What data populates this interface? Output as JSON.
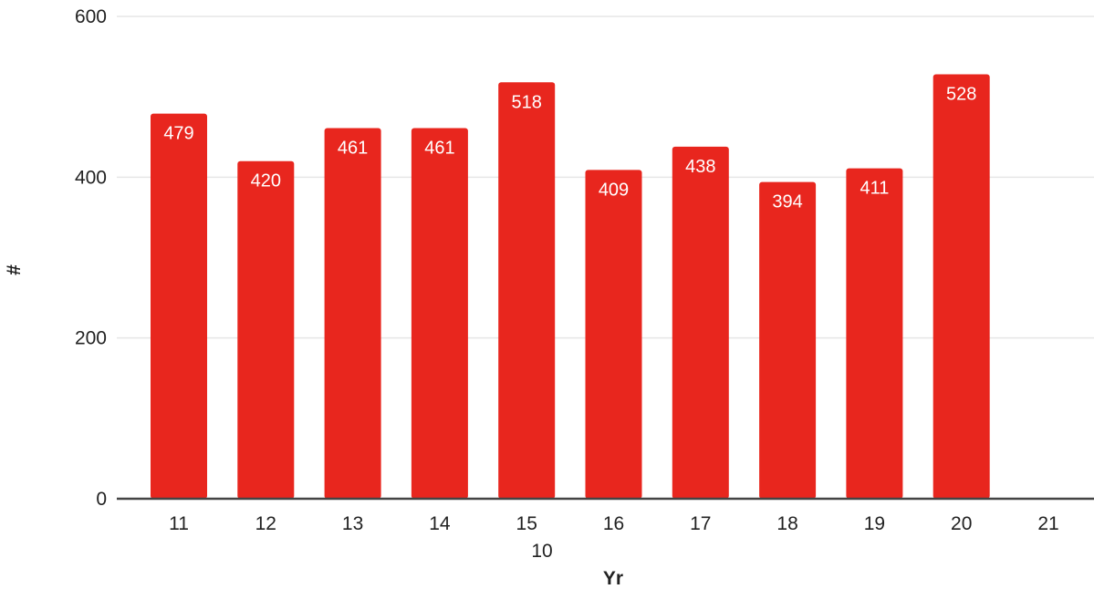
{
  "chart_data": {
    "type": "bar",
    "categories": [
      "11",
      "12",
      "13",
      "14",
      "15",
      "16",
      "17",
      "18",
      "19",
      "20",
      "21"
    ],
    "values": [
      479,
      420,
      461,
      461,
      518,
      409,
      438,
      394,
      411,
      528,
      null
    ],
    "data_labels": [
      "479",
      "420",
      "461",
      "461",
      "518",
      "409",
      "438",
      "394",
      "411",
      "528",
      ""
    ],
    "title": "",
    "xlabel": "Yr",
    "xlabel_extra": "10",
    "ylabel": "#",
    "ylim": [
      0,
      600
    ],
    "yticks": [
      "0",
      "200",
      "400",
      "600"
    ],
    "grid": true,
    "legend": "none",
    "colors": {
      "bar": "#e8261e",
      "grid": "#e6e6e6",
      "axis": "#444444",
      "label": "#ffffff"
    }
  }
}
